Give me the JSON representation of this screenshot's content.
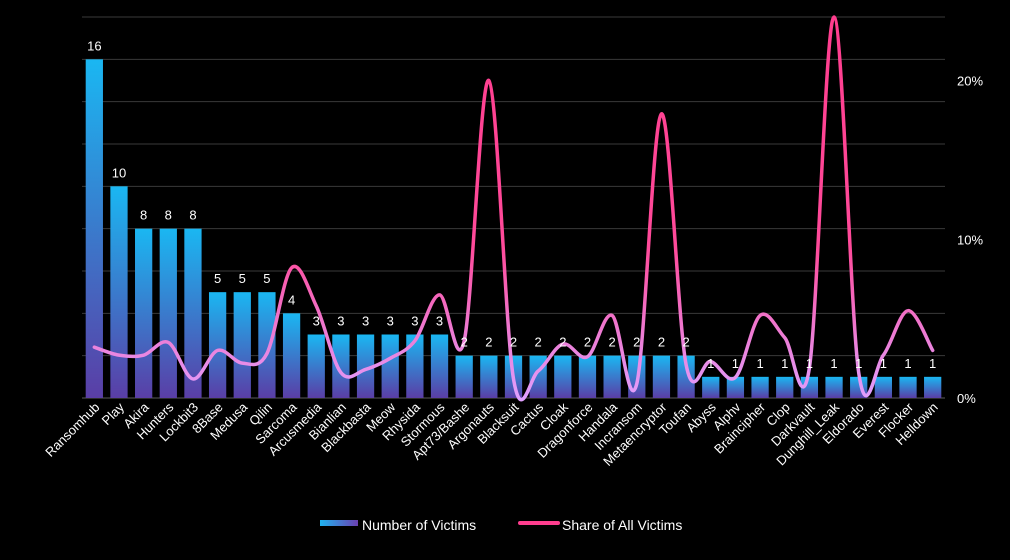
{
  "chart_data": {
    "type": "bar",
    "categories": [
      "Ransomhub",
      "Play",
      "Akira",
      "Hunters",
      "Lockbit3",
      "8Base",
      "Medusa",
      "Qilin",
      "Sarcoma",
      "Arcusmedia",
      "Bianlian",
      "Blackbasta",
      "Meow",
      "Rhysida",
      "Stormous",
      "Apt73/Bashe",
      "Argonauts",
      "Blacksuit",
      "Cactus",
      "Cloak",
      "Dragonforce",
      "Handala",
      "Incransom",
      "Metaencryptor",
      "Toufan",
      "Abyss",
      "Alphv",
      "Braincipher",
      "Clop",
      "Darkvault",
      "Dunghill_Leak",
      "Eldorado",
      "Everest",
      "Flocker",
      "Helldown"
    ],
    "series": [
      {
        "name": "Number of Victims",
        "kind": "bar",
        "color": "#1fb3f0",
        "color_end": "#5b3fa8",
        "values": [
          16,
          10,
          8,
          8,
          8,
          5,
          5,
          5,
          4,
          3,
          3,
          3,
          3,
          3,
          3,
          2,
          2,
          2,
          2,
          2,
          2,
          2,
          2,
          2,
          2,
          1,
          1,
          1,
          1,
          1,
          1,
          1,
          1,
          1,
          1
        ]
      },
      {
        "name": "Share of All Victims",
        "kind": "line",
        "axis": "right",
        "color": "#ff3d8e",
        "values": [
          3.2,
          2.7,
          2.7,
          3.5,
          1.2,
          3.0,
          2.2,
          2.8,
          8.2,
          5.8,
          1.6,
          1.8,
          2.5,
          3.6,
          6.5,
          3.6,
          20.0,
          1.2,
          1.7,
          3.4,
          2.6,
          5.2,
          0.9,
          17.9,
          2.1,
          2.3,
          1.3,
          5.2,
          3.8,
          1.9,
          24.0,
          1.6,
          2.7,
          5.5,
          3.0
        ]
      }
    ],
    "data_labels": [
      "16",
      "10",
      "8",
      "8",
      "8",
      "5",
      "5",
      "5",
      "4",
      "3",
      "3",
      "3",
      "3",
      "3",
      "3",
      "2",
      "2",
      "2",
      "2",
      "2",
      "2",
      "2",
      "2",
      "2",
      "2",
      "1",
      "1",
      "1",
      "1",
      "1",
      "1",
      "1",
      "1",
      "1",
      "1"
    ],
    "ylim": [
      0,
      18
    ],
    "y2lim": [
      0,
      24
    ],
    "y2_ticks": [
      "0%",
      "10%",
      "20%"
    ],
    "y2_tick_values": [
      0,
      10,
      20
    ],
    "grid": true,
    "legend": "bottom"
  }
}
